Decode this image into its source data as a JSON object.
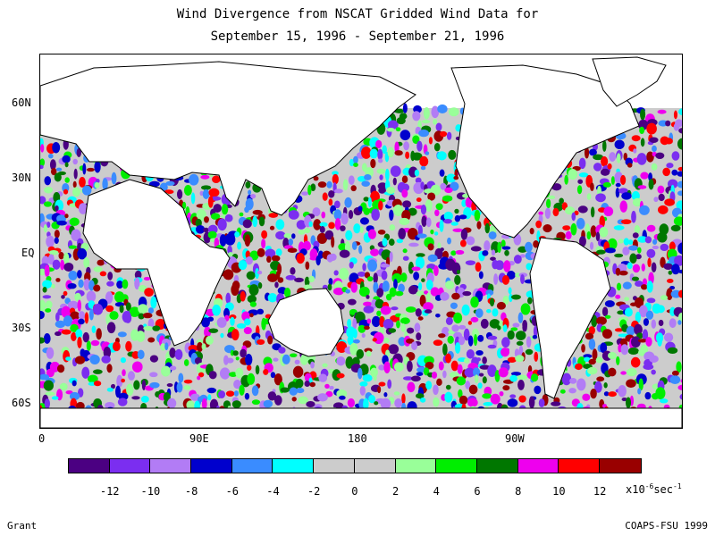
{
  "title_line1": "Wind Divergence from NSCAT Gridded Wind Data for",
  "title_line2": "September 15, 1996 - September 21, 1996",
  "lat_labels": {
    "n60": "60N",
    "n30": "30N",
    "eq": "EQ",
    "s30": "30S",
    "s60": "60S"
  },
  "lon_labels": {
    "l0": "0",
    "l90e": "90E",
    "l180": "180",
    "l90w": "90W"
  },
  "colorbar": {
    "colors": [
      "#4b0082",
      "#7b2ef0",
      "#b27cf5",
      "#0000cd",
      "#3a8cff",
      "#00ffff",
      "#cccccc",
      "#cccccc",
      "#99ff99",
      "#00ee00",
      "#007700",
      "#ee00ee",
      "#ff0000",
      "#990000"
    ],
    "ticks": [
      "-12",
      "-10",
      "-8",
      "-6",
      "-4",
      "-2",
      "0",
      "2",
      "4",
      "6",
      "8",
      "10",
      "12"
    ],
    "unit_prefix": "x10",
    "unit_exp": "-6",
    "unit_suffix": "sec",
    "unit_suffix_exp": "-1"
  },
  "author": "Grant",
  "credit": "COAPS-FSU 1999"
}
